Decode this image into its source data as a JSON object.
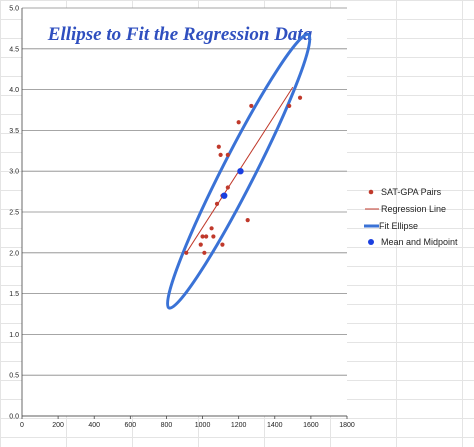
{
  "chart_data": {
    "type": "scatter",
    "title": "Ellipse to Fit the Regression Data",
    "xlim": [
      0,
      1800
    ],
    "ylim": [
      0,
      5.0
    ],
    "x_ticks": [
      0,
      200,
      400,
      600,
      800,
      1000,
      1200,
      1400,
      1600,
      1800
    ],
    "y_ticks": [
      "0.0",
      "0.5",
      "1.0",
      "1.5",
      "2.0",
      "2.5",
      "3.0",
      "3.5",
      "4.0",
      "4.5",
      "5.0"
    ],
    "grid": "horizontal",
    "legend_position": "right",
    "series": [
      {
        "name": "SAT-GPA Pairs",
        "kind": "points",
        "color": "#c0392b",
        "points": [
          [
            1540,
            3.9
          ],
          [
            1480,
            3.8
          ],
          [
            1270,
            3.8
          ],
          [
            1200,
            3.6
          ],
          [
            1090,
            3.3
          ],
          [
            1100,
            3.2
          ],
          [
            1140,
            3.2
          ],
          [
            1140,
            2.8
          ],
          [
            1110,
            2.7
          ],
          [
            1080,
            2.6
          ],
          [
            1250,
            2.4
          ],
          [
            1050,
            2.3
          ],
          [
            1060,
            2.2
          ],
          [
            1000,
            2.2
          ],
          [
            1020,
            2.2
          ],
          [
            990,
            2.1
          ],
          [
            1110,
            2.1
          ],
          [
            1010,
            2.0
          ],
          [
            910,
            2.0
          ]
        ]
      },
      {
        "name": "Regression Line",
        "kind": "line",
        "color": "#c0392b",
        "points": [
          [
            910,
            2.0
          ],
          [
            1500,
            4.03
          ]
        ]
      },
      {
        "name": "Fit Ellipse",
        "kind": "ellipse",
        "color": "#3a72d6",
        "center": [
          1200,
          3.0
        ],
        "semi_major_x": 850,
        "semi_minor_x": 90,
        "angle_deg": -63
      },
      {
        "name": "Mean and Midpoint",
        "kind": "points",
        "color": "#1a3fe0",
        "points": [
          [
            1120,
            2.7
          ],
          [
            1210,
            3.0
          ]
        ]
      }
    ]
  }
}
